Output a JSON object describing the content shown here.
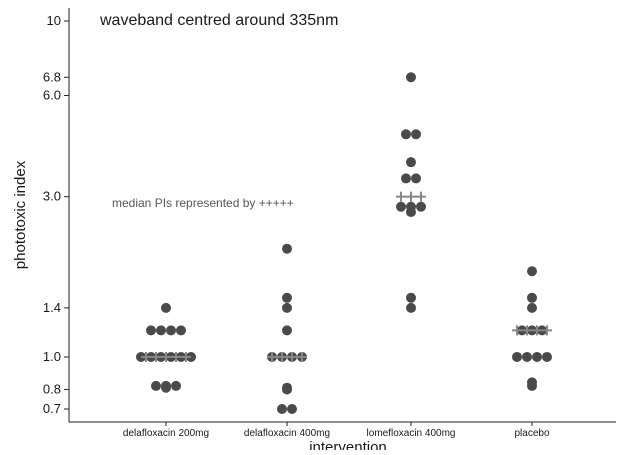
{
  "chart_data": {
    "type": "scatter",
    "title": "waveband centred around 335nm",
    "xlabel": "intervention",
    "ylabel": "phototoxic index",
    "y_scale": "log",
    "ylim": [
      0.65,
      10
    ],
    "y_ticks": [
      {
        "value": 0.7,
        "label": "0.7"
      },
      {
        "value": 0.8,
        "label": "0.8"
      },
      {
        "value": 1.0,
        "label": "1.0"
      },
      {
        "value": 1.4,
        "label": "1.4"
      },
      {
        "value": 3.0,
        "label": "3.0"
      },
      {
        "value": 6.0,
        "label": "6.0"
      },
      {
        "value": 6.8,
        "label": "6.8"
      },
      {
        "value": 10,
        "label": "10"
      }
    ],
    "categories": [
      "delafloxacin 200mg",
      "delafloxacin 400mg",
      "lomefloxacin 400mg",
      "placebo"
    ],
    "annotation": "median PIs represented by +++++",
    "grid": false,
    "point_color": "#4a4a4a",
    "median_color": "#888888",
    "series": [
      {
        "category": "delafloxacin 200mg",
        "points": [
          1.4,
          1.2,
          1.2,
          1.2,
          1.2,
          1.0,
          1.0,
          1.0,
          1.0,
          1.0,
          1.0,
          0.82,
          0.82,
          0.82,
          0.81
        ],
        "median": 1.0,
        "median_count": 5
      },
      {
        "category": "delafloxacin 400mg",
        "points": [
          2.1,
          1.5,
          1.4,
          1.2,
          1.0,
          1.0,
          1.0,
          1.0,
          0.81,
          0.8,
          0.7,
          0.7
        ],
        "median": 1.0,
        "median_count": 4
      },
      {
        "category": "lomefloxacin 400mg",
        "points": [
          6.8,
          4.6,
          4.6,
          3.8,
          3.4,
          3.4,
          2.8,
          2.8,
          2.8,
          2.7,
          1.5,
          1.4
        ],
        "median": 3.0,
        "median_count": 3
      },
      {
        "category": "placebo",
        "points": [
          1.8,
          1.5,
          1.4,
          1.2,
          1.2,
          1.2,
          1.0,
          1.0,
          1.0,
          1.0,
          0.84,
          0.82
        ],
        "median": 1.2,
        "median_count": 4
      }
    ]
  }
}
